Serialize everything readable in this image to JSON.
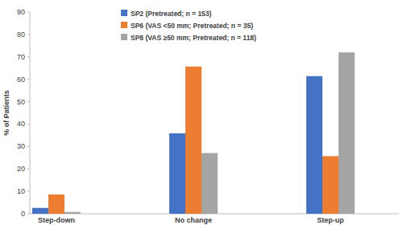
{
  "chart_data": {
    "type": "bar",
    "y_label": "% of Patients",
    "categories": [
      "Step-down",
      "No change",
      "Step-up"
    ],
    "series": [
      {
        "name": "SP2 (Pretreated; n = 153)",
        "color": "#4472c4",
        "values": [
          2.6,
          35.9,
          61.4
        ]
      },
      {
        "name": "SP6 (VAS <50 mm; Pretreated; n = 35)",
        "color": "#ed7d31",
        "values": [
          8.6,
          65.7,
          25.7
        ]
      },
      {
        "name": "SP8 (VAS ≥50 mm; Pretreated; n = 118)",
        "color": "#a5a5a5",
        "values": [
          0.8,
          27.1,
          72.0
        ]
      }
    ],
    "ylim": [
      0,
      90
    ],
    "yticks": [
      0,
      10,
      20,
      30,
      40,
      50,
      60,
      70,
      80,
      90
    ],
    "grid": false,
    "legend": "upper left"
  }
}
